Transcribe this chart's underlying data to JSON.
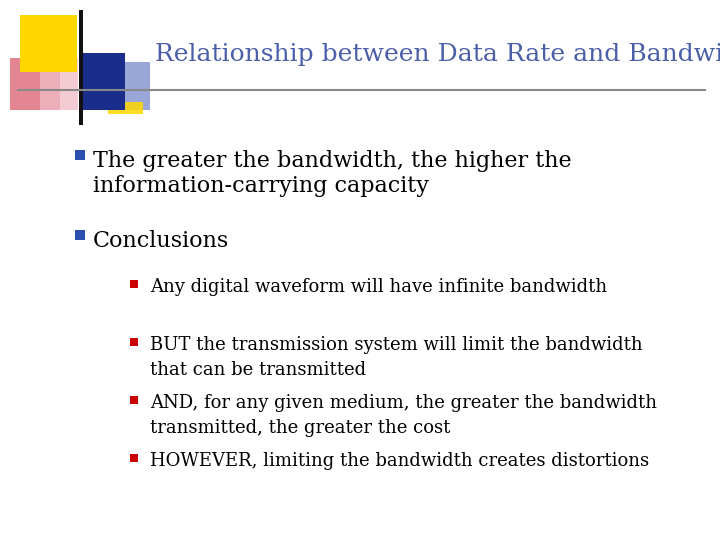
{
  "title": "Relationship between Data Rate and Bandwidth",
  "title_color": "#4B5EA8",
  "title_fontsize": 18,
  "background_color": "#FFFFFF",
  "bullet1_text_line1": "The greater the bandwidth, the higher the",
  "bullet1_text_line2": "information-carrying capacity",
  "bullet2_text": "Conclusions",
  "sub_bullets": [
    "Any digital waveform will have infinite bandwidth",
    "BUT the transmission system will limit the bandwidth\nthat can be transmitted",
    "AND, for any given medium, the greater the bandwidth\ntransmitted, the greater the cost",
    "HOWEVER, limiting the bandwidth creates distortions"
  ],
  "main_bullet_color": "#2B4FAF",
  "sub_bullet_color": "#CC0000",
  "main_bullet_fontsize": 16,
  "sub_bullet_fontsize": 13,
  "logo_colors": {
    "yellow": "#FFD700",
    "red_pink_grad_left": "#E8A0A0",
    "red_pink_grad_right": "#FFFFFF",
    "red": "#CC2222",
    "blue_dark": "#1A2D8A",
    "blue_light": "#7788CC",
    "blue_light2": "#AABBDD"
  },
  "line_color": "#888888"
}
